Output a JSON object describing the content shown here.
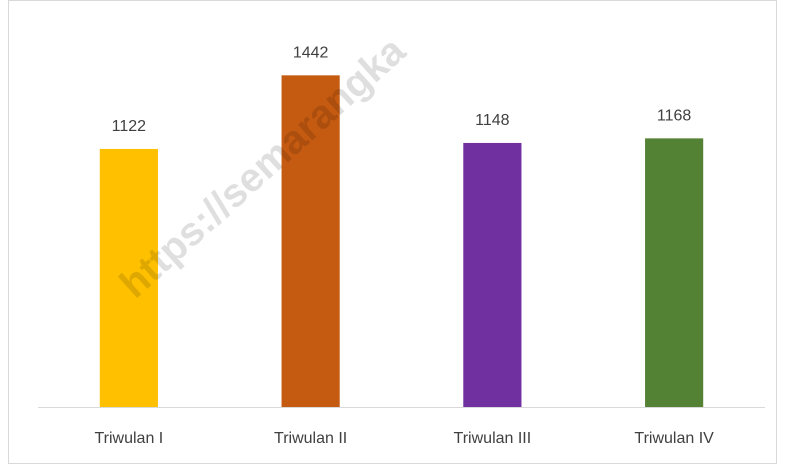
{
  "chart_data": {
    "type": "bar",
    "categories": [
      "Triwulan I",
      "Triwulan II",
      "Triwulan III",
      "Triwulan IV"
    ],
    "values": [
      1122,
      1442,
      1148,
      1168
    ],
    "colors": [
      "#ffc000",
      "#c55a11",
      "#7030a0",
      "#548235"
    ],
    "ylim": [
      0,
      1600
    ],
    "grid": false,
    "watermark": "https://semarangka"
  }
}
